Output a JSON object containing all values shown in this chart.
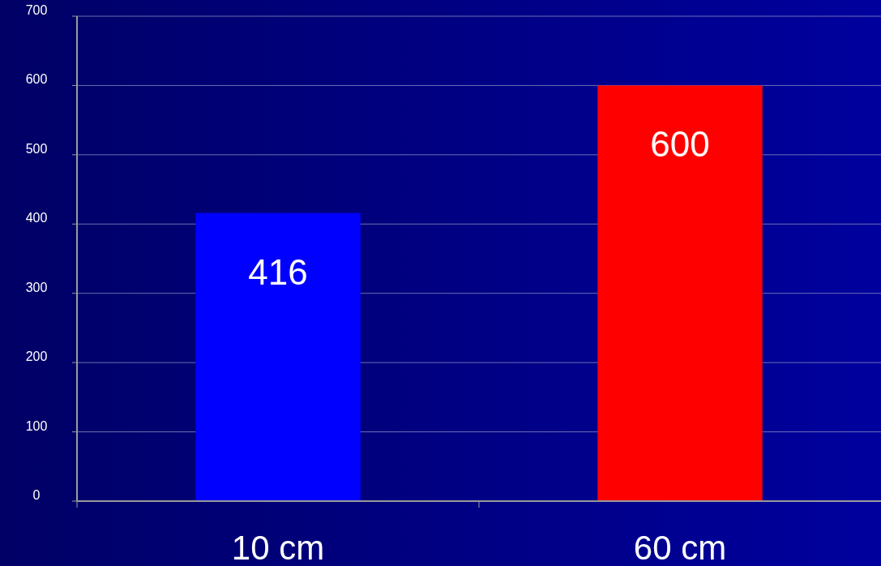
{
  "chart_data": {
    "type": "bar",
    "categories": [
      "10 cm",
      "60 cm"
    ],
    "values": [
      416,
      600
    ],
    "colors": [
      "#0000ff",
      "#ff0000"
    ],
    "ylim": [
      0,
      700
    ],
    "yticks": [
      0,
      100,
      200,
      300,
      400,
      500,
      600,
      700
    ],
    "grid": "y",
    "data_labels": true
  }
}
